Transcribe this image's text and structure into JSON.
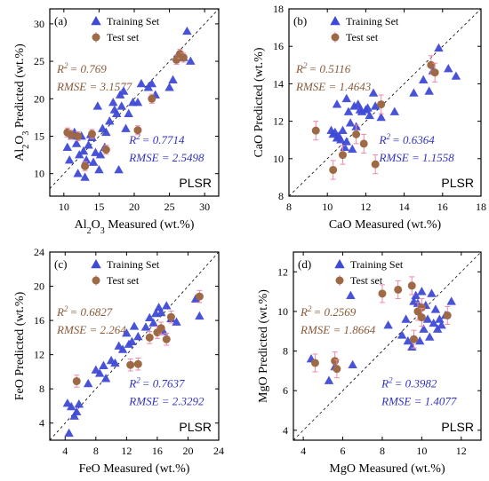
{
  "style": {
    "train_color": "#3e4ad6",
    "test_color": "#9e6a45",
    "test_errbar_color": "#ee88aa",
    "train_stat_color": "#3333bb",
    "test_stat_color": "#8a5a3a"
  },
  "chart_data": [
    {
      "type": "scatter",
      "panel_label": "(a)",
      "method": "PLSR",
      "xlabel": {
        "pre": "Al",
        "s1": "2",
        "mid": "O",
        "s2": "3",
        "post": " Measured (wt.%)"
      },
      "ylabel": {
        "pre": "Al",
        "s1": "2",
        "mid": "O",
        "s2": "3",
        "post": " Predicted (wt.%)"
      },
      "xlim": [
        8,
        32
      ],
      "ylim": [
        7,
        32
      ],
      "xticks": [
        10,
        15,
        20,
        25,
        30
      ],
      "yticks": [
        10,
        15,
        20,
        25,
        30
      ],
      "legend": {
        "train": "Training Set",
        "test": "Test set"
      },
      "stats_test": {
        "r2": "= 0.769",
        "rmse": "RMSE = 3.1577"
      },
      "stats_train": {
        "r2": "= 0.7714",
        "rmse": "RMSE = 2.5498"
      },
      "train": [
        [
          10.5,
          13.5
        ],
        [
          10.8,
          11.8
        ],
        [
          11.2,
          15
        ],
        [
          11.5,
          15.5
        ],
        [
          11.8,
          14
        ],
        [
          12,
          10
        ],
        [
          12.2,
          12.5
        ],
        [
          12.5,
          15
        ],
        [
          12.8,
          13
        ],
        [
          13,
          9.5
        ],
        [
          13.2,
          11.8
        ],
        [
          13.5,
          13.8
        ],
        [
          13.8,
          15.2
        ],
        [
          14,
          14.8
        ],
        [
          14.2,
          11.5
        ],
        [
          14.5,
          12.8
        ],
        [
          14.8,
          19
        ],
        [
          15,
          10.5
        ],
        [
          15.2,
          12.5
        ],
        [
          15.5,
          16
        ],
        [
          15.8,
          13.5
        ],
        [
          16,
          15.5
        ],
        [
          16.5,
          17
        ],
        [
          17,
          19.5
        ],
        [
          17.2,
          18.5
        ],
        [
          17.5,
          18
        ],
        [
          17.8,
          10.5
        ],
        [
          18,
          20.5
        ],
        [
          18.2,
          19
        ],
        [
          18.5,
          21
        ],
        [
          18.8,
          16
        ],
        [
          19.2,
          18
        ],
        [
          19.8,
          19.5
        ],
        [
          20.5,
          19.5
        ],
        [
          21,
          22
        ],
        [
          22,
          21.5
        ],
        [
          22.5,
          22
        ],
        [
          23,
          20.5
        ],
        [
          25,
          21.5
        ],
        [
          25.5,
          22.5
        ],
        [
          26,
          25.5
        ],
        [
          27,
          25.5
        ],
        [
          27.5,
          29
        ],
        [
          28,
          25
        ]
      ],
      "test": [
        [
          10.5,
          15.5
        ],
        [
          11,
          15.2
        ],
        [
          12,
          15
        ],
        [
          13,
          11
        ],
        [
          14,
          15.3
        ],
        [
          16,
          13.2
        ],
        [
          20.5,
          15.8
        ],
        [
          22.5,
          20
        ],
        [
          26,
          25.2
        ],
        [
          26.5,
          26
        ],
        [
          27,
          25.5
        ]
      ],
      "test_err": 0.6
    },
    {
      "type": "scatter",
      "panel_label": "(b)",
      "method": "PLSR",
      "xlabel": {
        "pre": "CaO Measured (wt.%)",
        "s1": "",
        "mid": "",
        "s2": "",
        "post": ""
      },
      "ylabel": {
        "pre": "CaO Predicted (wt.%)",
        "s1": "",
        "mid": "",
        "s2": "",
        "post": ""
      },
      "xlim": [
        8,
        18
      ],
      "ylim": [
        8,
        18
      ],
      "xticks": [
        8,
        10,
        12,
        14,
        16,
        18
      ],
      "yticks": [
        8,
        10,
        12,
        14,
        16,
        18
      ],
      "legend": {
        "train": "Training Set",
        "test": "Test set"
      },
      "stats_test": {
        "r2": "= 0.5116",
        "rmse": "RMSE = 1.4643"
      },
      "stats_train": {
        "r2": "= 0.6364",
        "rmse": "RMSE = 1.1558"
      },
      "train": [
        [
          10.2,
          11.5
        ],
        [
          10.3,
          11.3
        ],
        [
          10.4,
          11.4
        ],
        [
          10.5,
          12.9
        ],
        [
          10.5,
          11.1
        ],
        [
          10.6,
          11.2
        ],
        [
          10.7,
          11
        ],
        [
          10.8,
          11.5
        ],
        [
          10.9,
          10.6
        ],
        [
          11,
          10.9
        ],
        [
          11,
          13.2
        ],
        [
          11.1,
          12.5
        ],
        [
          11.2,
          11.9
        ],
        [
          11.3,
          10.5
        ],
        [
          11.4,
          12.8
        ],
        [
          11.5,
          11.7
        ],
        [
          11.6,
          12.9
        ],
        [
          11.7,
          12.6
        ],
        [
          11.8,
          12.5
        ],
        [
          12,
          12.6
        ],
        [
          12.1,
          12.7
        ],
        [
          12.2,
          12.3
        ],
        [
          12.4,
          13.5
        ],
        [
          12.5,
          12.8
        ],
        [
          12.8,
          12.2
        ],
        [
          13.5,
          12.5
        ],
        [
          14.5,
          13.5
        ],
        [
          15,
          14.2
        ],
        [
          15.3,
          13.6
        ],
        [
          15.5,
          14.7
        ],
        [
          15.8,
          15.9
        ],
        [
          16.3,
          14.8
        ],
        [
          16.7,
          14.4
        ]
      ],
      "test": [
        [
          9.4,
          11.5
        ],
        [
          10.3,
          9.4
        ],
        [
          10.8,
          10.2
        ],
        [
          11.5,
          11.3
        ],
        [
          11.9,
          10.8
        ],
        [
          12.5,
          9.7
        ],
        [
          12.8,
          12.9
        ],
        [
          15.4,
          15
        ],
        [
          15.6,
          14.6
        ]
      ],
      "test_err": 0.5
    },
    {
      "type": "scatter",
      "panel_label": "(c)",
      "method": "PLSR",
      "xlabel": {
        "pre": "FeO Measured (wt.%)",
        "s1": "",
        "mid": "",
        "s2": "",
        "post": ""
      },
      "ylabel": {
        "pre": "FeO Predicted (wt.%)",
        "s1": "",
        "mid": "",
        "s2": "",
        "post": ""
      },
      "xlim": [
        2,
        24
      ],
      "ylim": [
        2,
        24
      ],
      "xticks": [
        4,
        8,
        12,
        16,
        20,
        24
      ],
      "yticks": [
        4,
        8,
        12,
        16,
        20,
        24
      ],
      "legend": {
        "train": "Training Set",
        "test": "Test set"
      },
      "stats_test": {
        "r2": "= 0.6827",
        "rmse": "RMSE = 2.264"
      },
      "stats_train": {
        "r2": "= 0.7637",
        "rmse": "RMSE = 2.3292"
      },
      "train": [
        [
          4.3,
          6.3
        ],
        [
          4.5,
          2.8
        ],
        [
          4.8,
          5.9
        ],
        [
          5.2,
          4.8
        ],
        [
          5.5,
          5.3
        ],
        [
          5.8,
          6.2
        ],
        [
          7,
          8.6
        ],
        [
          8,
          10.2
        ],
        [
          8.5,
          9.8
        ],
        [
          9,
          10.7
        ],
        [
          9.3,
          9.2
        ],
        [
          10,
          11.3
        ],
        [
          10.5,
          11
        ],
        [
          11,
          13
        ],
        [
          11.5,
          12.6
        ],
        [
          12,
          14.5
        ],
        [
          12.3,
          13.2
        ],
        [
          12.7,
          13.5
        ],
        [
          13,
          15.3
        ],
        [
          13.5,
          14.1
        ],
        [
          14.5,
          15.2
        ],
        [
          15,
          16.3
        ],
        [
          15.5,
          15.7
        ],
        [
          15.8,
          16.8
        ],
        [
          16.2,
          17.5
        ],
        [
          16.5,
          16.9
        ],
        [
          16.8,
          14.7
        ],
        [
          17.2,
          17.7
        ],
        [
          17.8,
          16.2
        ],
        [
          18.5,
          15.8
        ],
        [
          21,
          18.5
        ],
        [
          21.5,
          16.5
        ]
      ],
      "test": [
        [
          5.5,
          8.9
        ],
        [
          12.5,
          10.8
        ],
        [
          13.5,
          10.9
        ],
        [
          15,
          14
        ],
        [
          16,
          14.6
        ],
        [
          16.5,
          15.1
        ],
        [
          17.2,
          13.8
        ],
        [
          17.8,
          16.4
        ],
        [
          21.5,
          18.8
        ]
      ],
      "test_err": 0.7
    },
    {
      "type": "scatter",
      "panel_label": "(d)",
      "method": "PLSR",
      "xlabel": {
        "pre": "MgO Measured (wt.%)",
        "s1": "",
        "mid": "",
        "s2": "",
        "post": ""
      },
      "ylabel": {
        "pre": "MgO Predicted (wt.%)",
        "s1": "",
        "mid": "",
        "s2": "",
        "post": ""
      },
      "xlim": [
        3.5,
        13
      ],
      "ylim": [
        3.5,
        13
      ],
      "xticks": [
        4,
        6,
        8,
        10,
        12
      ],
      "yticks": [
        4,
        6,
        8,
        10,
        12
      ],
      "legend": {
        "train": "Training Set",
        "test": "Test set"
      },
      "stats_test": {
        "r2": "= 0.2569",
        "rmse": "RMSE = 1.8664"
      },
      "stats_train": {
        "r2": "= 0.3982",
        "rmse": "RMSE = 1.4077"
      },
      "train": [
        [
          4.4,
          7.6
        ],
        [
          5.3,
          6.5
        ],
        [
          5.6,
          7.2
        ],
        [
          6.4,
          10.8
        ],
        [
          6.5,
          7.3
        ],
        [
          8.3,
          9.3
        ],
        [
          9,
          8.8
        ],
        [
          9.2,
          9.6
        ],
        [
          9.3,
          8.5
        ],
        [
          9.5,
          8.2
        ],
        [
          9.6,
          10.5
        ],
        [
          9.7,
          10.8
        ],
        [
          9.8,
          10.4
        ],
        [
          9.9,
          8.5
        ],
        [
          10,
          11
        ],
        [
          10.1,
          9.1
        ],
        [
          10.2,
          10.3
        ],
        [
          10.3,
          9.6
        ],
        [
          10.4,
          8.7
        ],
        [
          10.5,
          10.9
        ],
        [
          10.6,
          9.4
        ],
        [
          10.7,
          10.1
        ],
        [
          10.8,
          9.1
        ],
        [
          10.9,
          9.6
        ],
        [
          11,
          9.3
        ],
        [
          11.2,
          9.8
        ],
        [
          11.5,
          10.5
        ]
      ],
      "test": [
        [
          4.6,
          7.4
        ],
        [
          5.6,
          7.5
        ],
        [
          5.7,
          7.1
        ],
        [
          8,
          10.9
        ],
        [
          8.8,
          11.1
        ],
        [
          9.5,
          11.3
        ],
        [
          9.6,
          8.6
        ],
        [
          9.8,
          10
        ],
        [
          10,
          10.2
        ],
        [
          10,
          9.7
        ],
        [
          11.3,
          9.8
        ]
      ],
      "test_err": 0.45
    }
  ]
}
